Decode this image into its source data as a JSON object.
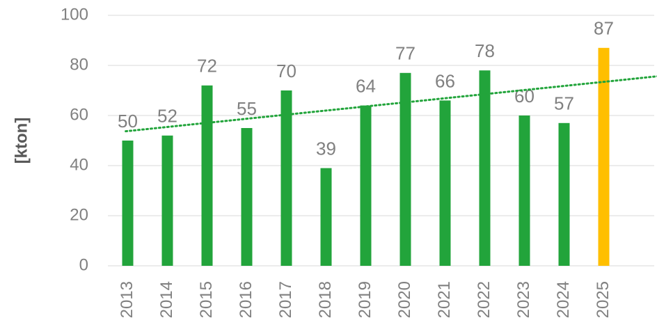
{
  "chart_data": {
    "type": "bar",
    "y_label": "[kton]",
    "categories": [
      "2013",
      "2014",
      "2015",
      "2016",
      "2017",
      "2018",
      "2019",
      "2020",
      "2021",
      "2022",
      "2023",
      "2024",
      "2025"
    ],
    "values": [
      50,
      52,
      72,
      55,
      70,
      39,
      64,
      77,
      66,
      78,
      60,
      57,
      87
    ],
    "colors": [
      "#22a43b",
      "#22a43b",
      "#22a43b",
      "#22a43b",
      "#22a43b",
      "#22a43b",
      "#22a43b",
      "#22a43b",
      "#22a43b",
      "#22a43b",
      "#22a43b",
      "#22a43b",
      "#ffbf00"
    ],
    "ylim": [
      0,
      100
    ],
    "yticks": [
      0,
      20,
      40,
      60,
      80,
      100
    ],
    "grid": true,
    "trendline": {
      "type": "linear",
      "color": "#22a43b"
    }
  }
}
